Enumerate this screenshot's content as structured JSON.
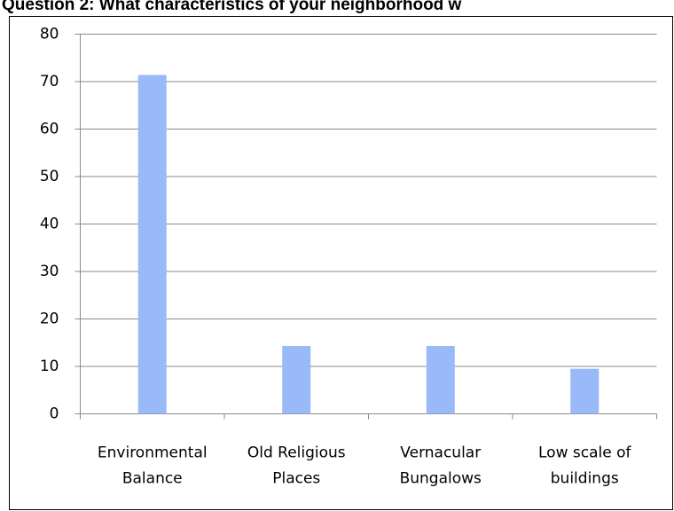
{
  "chart_data": {
    "type": "bar",
    "title": "Question 2:    What characteristics of your neighborhood w",
    "categories": [
      [
        "Environmental",
        "Balance"
      ],
      [
        "Old Religious",
        "Places"
      ],
      [
        "Vernacular",
        "Bungalows"
      ],
      [
        "Low scale of",
        "buildings"
      ]
    ],
    "values": [
      71.4,
      14.3,
      14.3,
      9.5
    ],
    "color": "#99b9f8",
    "ylim": [
      0,
      80
    ],
    "yticks": [
      0,
      10,
      20,
      30,
      40,
      50,
      60,
      70,
      80
    ],
    "grid": true
  }
}
